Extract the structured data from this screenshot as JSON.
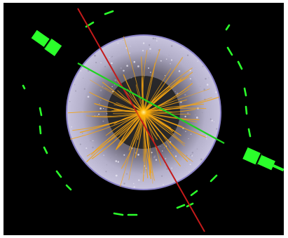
{
  "image": {
    "subject": "particle-collision-event-display",
    "text_visible": "",
    "colors": {
      "background": "#000000",
      "frame": "#ffffff",
      "tracker_disc": "#b8b4d2",
      "tracker_rim": "#8a82c8",
      "inner_core": "#222222",
      "tracks": "#f3a312",
      "vertex": "#ffcc44",
      "red_track": "#c41a1a",
      "green_track": "#1fd41f",
      "muon_hits": "#2bff2b"
    }
  }
}
